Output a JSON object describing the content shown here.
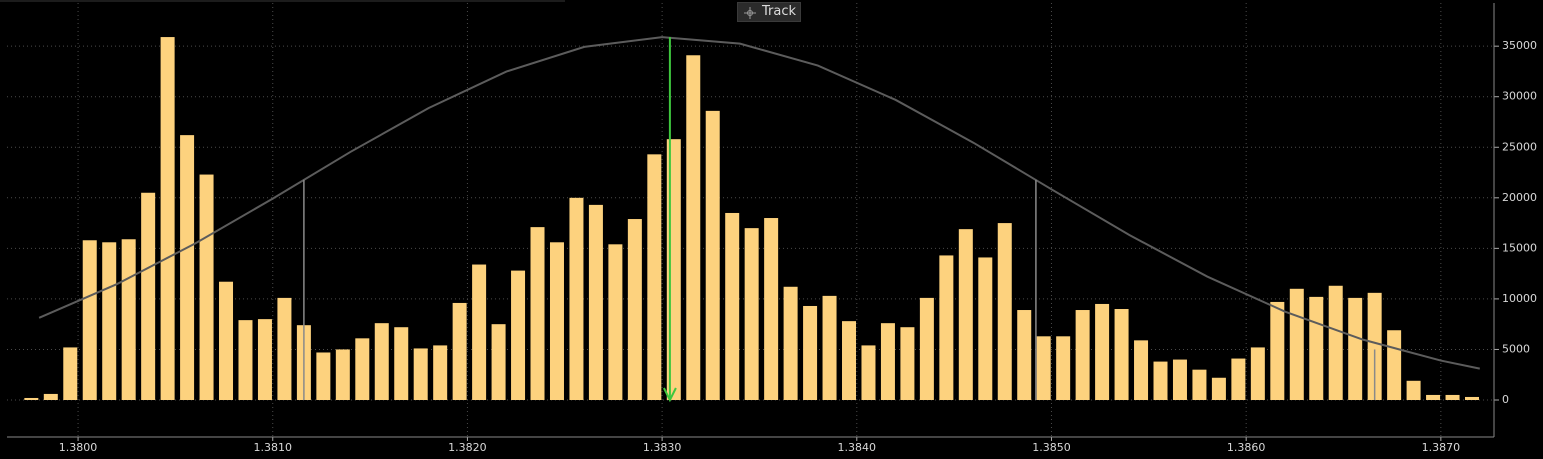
{
  "toolbar": {
    "track": "Track"
  },
  "chart_data": {
    "type": "bar",
    "color": "#fdd27e",
    "x": [
      1.37976,
      1.37986,
      1.37996,
      1.38006,
      1.38016,
      1.38026,
      1.38036,
      1.38046,
      1.38056,
      1.38066,
      1.38076,
      1.38086,
      1.38096,
      1.38106,
      1.38116,
      1.38126,
      1.38136,
      1.38146,
      1.38156,
      1.38166,
      1.38176,
      1.38186,
      1.38196,
      1.38206,
      1.38216,
      1.38226,
      1.38236,
      1.38246,
      1.38256,
      1.38266,
      1.38276,
      1.38286,
      1.38296,
      1.38306,
      1.38316,
      1.38326,
      1.38336,
      1.38346,
      1.38356,
      1.38366,
      1.38376,
      1.38386,
      1.38396,
      1.38406,
      1.38416,
      1.38426,
      1.38436,
      1.38446,
      1.38456,
      1.38466,
      1.38476,
      1.38486,
      1.38496,
      1.38506,
      1.38516,
      1.38526,
      1.38536,
      1.38546,
      1.38556,
      1.38566,
      1.38576,
      1.38586,
      1.38596,
      1.38606,
      1.38616,
      1.38626,
      1.38636,
      1.38646,
      1.38656,
      1.38666,
      1.38676,
      1.38686,
      1.38696,
      1.38706,
      1.38716
    ],
    "values": [
      200,
      600,
      5200,
      15800,
      15600,
      15900,
      20500,
      35900,
      26200,
      22300,
      11700,
      7900,
      8000,
      10100,
      7400,
      4700,
      5000,
      6100,
      7600,
      7200,
      5100,
      5400,
      9600,
      13400,
      7500,
      12800,
      17100,
      15600,
      20000,
      19300,
      15400,
      17900,
      24300,
      25800,
      34100,
      28600,
      18500,
      17000,
      18000,
      11200,
      9300,
      10300,
      7800,
      5400,
      7600,
      7200,
      10100,
      14300,
      16900,
      14100,
      17500,
      8900,
      6300,
      6300,
      8900,
      9500,
      9000,
      5900,
      3800,
      4000,
      3000,
      2200,
      4100,
      5200,
      9700,
      11000,
      10200,
      11300,
      10100,
      10600,
      6900,
      1900,
      500,
      500,
      300
    ],
    "curve": {
      "color": "#5c5c5c",
      "x": [
        1.3798,
        1.3802,
        1.3806,
        1.381,
        1.3814,
        1.3818,
        1.3822,
        1.3826,
        1.383,
        1.3834,
        1.3838,
        1.3842,
        1.3846,
        1.385,
        1.3854,
        1.3858,
        1.3862,
        1.3866,
        1.387,
        1.3872
      ],
      "values": [
        8130,
        11470,
        15470,
        19920,
        24550,
        28870,
        32490,
        34930,
        35890,
        35250,
        33080,
        29680,
        25440,
        20840,
        16320,
        12210,
        8740,
        5970,
        3900,
        3100
      ]
    },
    "markers": [
      {
        "x": 1.38304,
        "y": 35900,
        "color": "#3ec73e",
        "arrow": true
      },
      {
        "x": 1.38116,
        "y": 21770,
        "color": "#8a8a8a"
      },
      {
        "x": 1.38492,
        "y": 21770,
        "color": "#8a8a8a"
      },
      {
        "x": 1.38666,
        "y": 5000,
        "color": "#8a8a8a"
      }
    ],
    "xlim": [
      1.379635,
      1.387273
    ],
    "ylim": [
      -3660,
      39270
    ],
    "xticks": [
      {
        "value": 1.38,
        "label": "1.3800"
      },
      {
        "value": 1.381,
        "label": "1.3810"
      },
      {
        "value": 1.382,
        "label": "1.3820"
      },
      {
        "value": 1.383,
        "label": "1.3830"
      },
      {
        "value": 1.384,
        "label": "1.3840"
      },
      {
        "value": 1.385,
        "label": "1.3850"
      },
      {
        "value": 1.386,
        "label": "1.3860"
      },
      {
        "value": 1.387,
        "label": "1.3870"
      }
    ],
    "yticks": [
      0,
      5000,
      10000,
      15000,
      20000,
      25000,
      30000,
      35000
    ],
    "grid": true
  }
}
